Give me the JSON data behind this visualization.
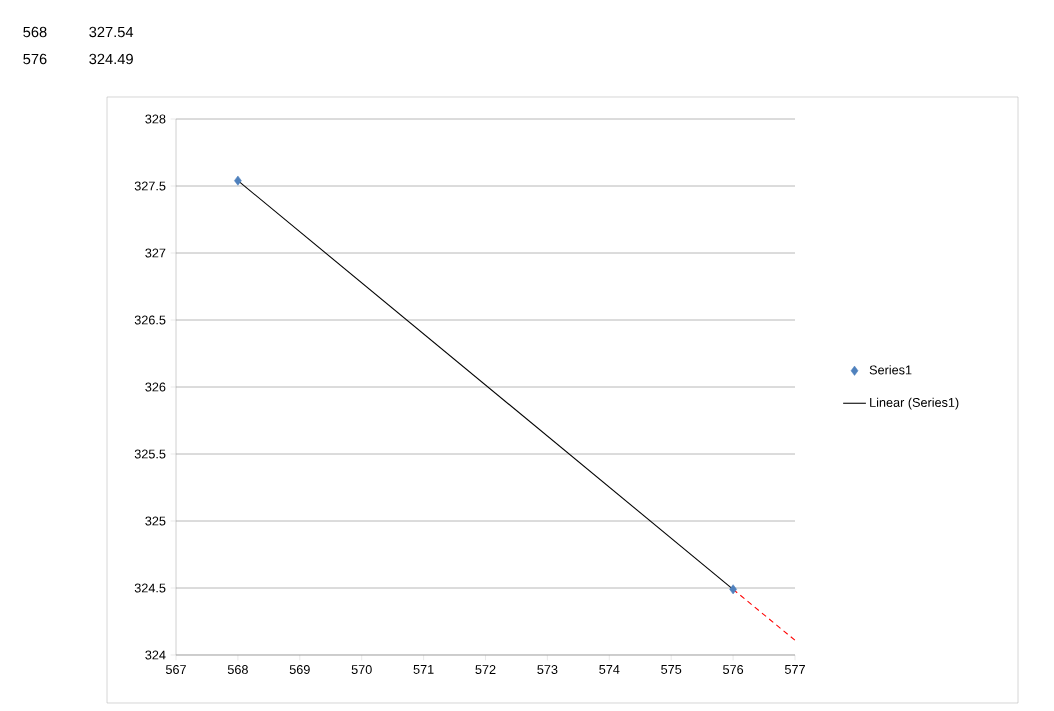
{
  "chart_data": {
    "type": "scatter",
    "series": [
      {
        "name": "Series1",
        "color": "#4f81bd",
        "marker": "diamond",
        "x": [
          568,
          576
        ],
        "values": [
          327.54,
          324.49
        ]
      },
      {
        "name": "Linear (Series1)",
        "type": "line",
        "color": "#000000",
        "marker": "none",
        "line_style": "solid",
        "x": [
          568,
          576
        ],
        "values": [
          327.54,
          324.49
        ]
      },
      {
        "type": "line",
        "color": "#ff0000",
        "marker": "none",
        "line_style": "dashed",
        "x": [
          576,
          577
        ],
        "values": [
          324.49,
          324.11
        ]
      }
    ],
    "xlim": [
      567,
      577
    ],
    "xticks": [
      567,
      568,
      569,
      570,
      571,
      572,
      573,
      574,
      575,
      576,
      577
    ],
    "ylim": [
      324,
      328
    ],
    "yticks": [
      324,
      324.5,
      325,
      325.5,
      326,
      326.5,
      327,
      327.5,
      328
    ],
    "grid": "y",
    "legend": "right",
    "annotations": [
      "568",
      "327.54",
      "576",
      "324.49"
    ]
  }
}
